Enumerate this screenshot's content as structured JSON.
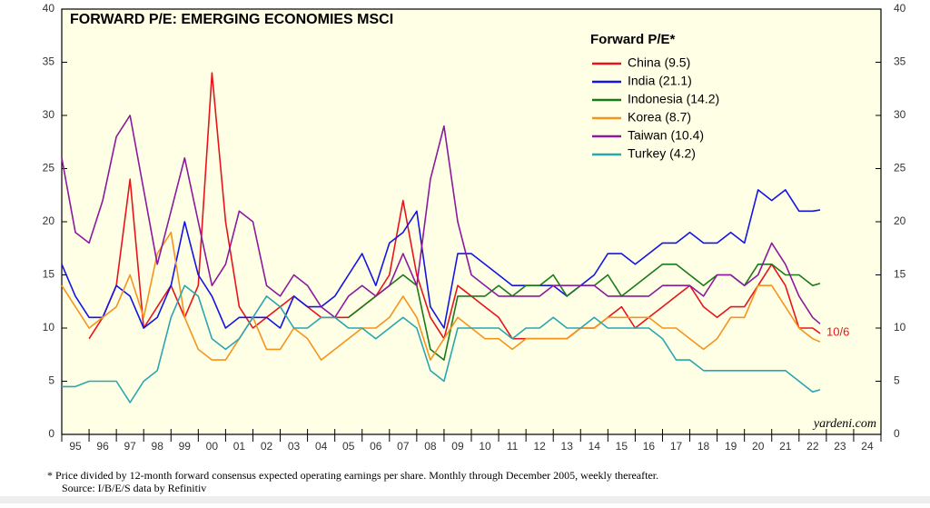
{
  "chart_data": {
    "type": "line",
    "title": "FORWARD P/E: EMERGING ECONOMIES MSCI",
    "legend_title": "Forward P/E*",
    "legend_position": "upper right",
    "annotation": "10/6",
    "source": "yardeni.com",
    "footnote": [
      "*   Price divided by 12-month forward consensus expected operating earnings per share. Monthly through December 2005, weekly thereafter.",
      "Source: I/B/E/S data by Refinitiv"
    ],
    "xlim": [
      1995,
      2025
    ],
    "xticks": [
      {
        "value": 1995.5,
        "label": "95"
      },
      {
        "value": 1996.5,
        "label": "96"
      },
      {
        "value": 1997.5,
        "label": "97"
      },
      {
        "value": 1998.5,
        "label": "98"
      },
      {
        "value": 1999.5,
        "label": "99"
      },
      {
        "value": 2000.5,
        "label": "00"
      },
      {
        "value": 2001.5,
        "label": "01"
      },
      {
        "value": 2002.5,
        "label": "02"
      },
      {
        "value": 2003.5,
        "label": "03"
      },
      {
        "value": 2004.5,
        "label": "04"
      },
      {
        "value": 2005.5,
        "label": "05"
      },
      {
        "value": 2006.5,
        "label": "06"
      },
      {
        "value": 2007.5,
        "label": "07"
      },
      {
        "value": 2008.5,
        "label": "08"
      },
      {
        "value": 2009.5,
        "label": "09"
      },
      {
        "value": 2010.5,
        "label": "10"
      },
      {
        "value": 2011.5,
        "label": "11"
      },
      {
        "value": 2012.5,
        "label": "12"
      },
      {
        "value": 2013.5,
        "label": "13"
      },
      {
        "value": 2014.5,
        "label": "14"
      },
      {
        "value": 2015.5,
        "label": "15"
      },
      {
        "value": 2016.5,
        "label": "16"
      },
      {
        "value": 2017.5,
        "label": "17"
      },
      {
        "value": 2018.5,
        "label": "18"
      },
      {
        "value": 2019.5,
        "label": "19"
      },
      {
        "value": 2020.5,
        "label": "20"
      },
      {
        "value": 2021.5,
        "label": "21"
      },
      {
        "value": 2022.5,
        "label": "22"
      },
      {
        "value": 2023.5,
        "label": "23"
      },
      {
        "value": 2024.5,
        "label": "24"
      }
    ],
    "ylim": [
      0,
      40
    ],
    "yticks": [
      0,
      5,
      10,
      15,
      20,
      25,
      30,
      35,
      40
    ],
    "grid": false,
    "x": [
      1995,
      1995.5,
      1996,
      1996.5,
      1997,
      1997.5,
      1998,
      1998.5,
      1999,
      1999.5,
      2000,
      2000.5,
      2001,
      2001.5,
      2002,
      2002.5,
      2003,
      2003.5,
      2004,
      2004.5,
      2005,
      2005.5,
      2006,
      2006.5,
      2007,
      2007.5,
      2008,
      2008.5,
      2009,
      2009.5,
      2010,
      2010.5,
      2011,
      2011.5,
      2012,
      2012.5,
      2013,
      2013.5,
      2014,
      2014.5,
      2015,
      2015.5,
      2016,
      2016.5,
      2017,
      2017.5,
      2018,
      2018.5,
      2019,
      2019.5,
      2020,
      2020.5,
      2021,
      2021.5,
      2022,
      2022.5,
      2022.77
    ],
    "series": [
      {
        "name": "China (9.5)",
        "color": "#e8141b",
        "values": [
          null,
          null,
          9,
          11,
          14,
          24,
          10,
          12,
          14,
          11,
          14,
          34,
          20,
          12,
          10,
          11,
          12,
          13,
          12,
          11,
          11,
          11,
          12,
          13,
          15,
          22,
          15,
          11,
          9,
          14,
          13,
          12,
          11,
          9,
          9,
          9,
          9,
          9,
          10,
          10,
          11,
          12,
          10,
          11,
          12,
          13,
          14,
          12,
          11,
          12,
          12,
          14,
          16,
          14,
          10,
          10,
          9.5
        ]
      },
      {
        "name": "India (21.1)",
        "color": "#1414e6",
        "values": [
          16,
          13,
          11,
          11,
          14,
          13,
          10,
          11,
          14,
          20,
          15,
          13,
          10,
          11,
          11,
          11,
          10,
          13,
          12,
          12,
          13,
          15,
          17,
          14,
          18,
          19,
          21,
          12,
          10,
          17,
          17,
          16,
          15,
          14,
          14,
          14,
          14,
          13,
          14,
          15,
          17,
          17,
          16,
          17,
          18,
          18,
          19,
          18,
          18,
          19,
          18,
          23,
          22,
          23,
          21,
          21,
          21.1
        ]
      },
      {
        "name": "Indonesia (14.2)",
        "color": "#1a7a1a",
        "values": [
          null,
          null,
          null,
          null,
          null,
          null,
          null,
          null,
          null,
          null,
          null,
          null,
          null,
          null,
          null,
          null,
          null,
          null,
          null,
          null,
          null,
          11,
          12,
          13,
          14,
          15,
          14,
          8,
          7,
          13,
          13,
          13,
          14,
          13,
          14,
          14,
          15,
          13,
          14,
          14,
          15,
          13,
          14,
          15,
          16,
          16,
          15,
          14,
          15,
          15,
          14,
          16,
          16,
          15,
          15,
          14,
          14.2
        ]
      },
      {
        "name": "Korea (8.7)",
        "color": "#f5941d",
        "values": [
          14,
          12,
          10,
          11,
          12,
          15,
          11,
          17,
          19,
          11,
          8,
          7,
          7,
          9,
          11,
          8,
          8,
          10,
          9,
          7,
          8,
          9,
          10,
          10,
          11,
          13,
          11,
          7,
          9,
          11,
          10,
          9,
          9,
          8,
          9,
          9,
          9,
          9,
          10,
          10,
          11,
          11,
          11,
          11,
          10,
          10,
          9,
          8,
          9,
          11,
          11,
          14,
          14,
          12,
          10,
          9,
          8.7
        ]
      },
      {
        "name": "Taiwan (10.4)",
        "color": "#8b1a9e",
        "values": [
          26,
          19,
          18,
          22,
          28,
          30,
          23,
          16,
          21,
          26,
          20,
          14,
          16,
          21,
          20,
          14,
          13,
          15,
          14,
          12,
          11,
          13,
          14,
          13,
          14,
          17,
          14,
          24,
          29,
          20,
          15,
          14,
          13,
          13,
          13,
          13,
          14,
          14,
          14,
          14,
          13,
          13,
          13,
          13,
          14,
          14,
          14,
          13,
          15,
          15,
          14,
          15,
          18,
          16,
          13,
          11,
          10.4
        ]
      },
      {
        "name": "Turkey (4.2)",
        "color": "#2aa6b0",
        "values": [
          4.5,
          4.5,
          5,
          5,
          5,
          3,
          5,
          6,
          11,
          14,
          13,
          9,
          8,
          9,
          11,
          13,
          12,
          10,
          10,
          11,
          11,
          10,
          10,
          9,
          10,
          11,
          10,
          6,
          5,
          10,
          10,
          10,
          10,
          9,
          10,
          10,
          11,
          10,
          10,
          11,
          10,
          10,
          10,
          10,
          9,
          7,
          7,
          6,
          6,
          6,
          6,
          6,
          6,
          6,
          5,
          4,
          4.2
        ]
      }
    ]
  }
}
